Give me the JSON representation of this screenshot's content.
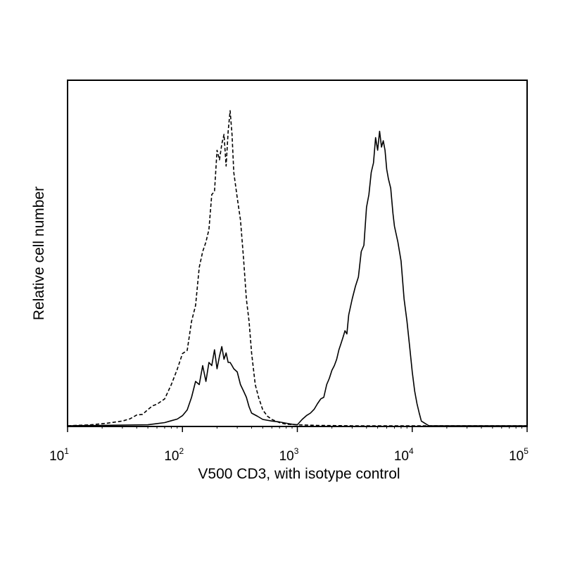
{
  "chart_data": {
    "type": "line",
    "title": "",
    "xlabel": "V500 CD3, with isotype control",
    "ylabel": "Relative cell number",
    "x_scale": "log",
    "xlim": [
      10,
      100000
    ],
    "ylim": [
      0,
      100
    ],
    "grid": false,
    "legend": "none",
    "x_ticks": [
      {
        "base": "10",
        "exp": "1",
        "value": 10
      },
      {
        "base": "10",
        "exp": "2",
        "value": 100
      },
      {
        "base": "10",
        "exp": "3",
        "value": 1000
      },
      {
        "base": "10",
        "exp": "4",
        "value": 10000
      },
      {
        "base": "10",
        "exp": "5",
        "value": 100000
      }
    ],
    "series": [
      {
        "style": "dashed",
        "color": "#000000",
        "x": [
          10,
          16,
          22,
          30,
          35,
          40,
          45,
          50,
          55,
          60,
          70,
          80,
          90,
          100,
          110,
          120,
          130,
          140,
          150,
          160,
          170,
          180,
          190,
          200,
          210,
          220,
          230,
          240,
          250,
          260,
          270,
          280,
          300,
          320,
          340,
          360,
          380,
          400,
          430,
          460,
          500,
          550,
          600,
          700,
          800,
          1000,
          1500,
          3000,
          10000,
          100000
        ],
        "y": [
          0,
          0.3,
          0.8,
          1.5,
          2.2,
          3.4,
          3.6,
          5.1,
          6.3,
          6.8,
          8.5,
          13,
          17.8,
          22.8,
          23.8,
          33,
          38,
          50,
          55,
          58,
          62,
          73,
          74,
          87,
          84,
          89,
          92,
          82,
          93,
          99.5,
          92,
          80,
          72,
          65,
          53,
          40,
          33,
          23,
          13,
          9,
          5,
          3,
          2,
          1,
          0.5,
          0.3,
          0.1,
          0,
          0,
          0
        ]
      },
      {
        "style": "solid",
        "color": "#000000",
        "x": [
          10,
          50,
          60,
          70,
          80,
          90,
          100,
          110,
          120,
          130,
          140,
          150,
          160,
          170,
          180,
          190,
          200,
          210,
          220,
          230,
          240,
          250,
          260,
          270,
          280,
          300,
          320,
          340,
          360,
          380,
          400,
          450,
          500,
          600,
          700,
          800,
          900,
          1000,
          1100,
          1200,
          1300,
          1400,
          1500,
          1600,
          1700,
          1800,
          1900,
          2000,
          2100,
          2200,
          2300,
          2400,
          2500,
          2600,
          2700,
          2800,
          3000,
          3200,
          3400,
          3600,
          3800,
          4000,
          4200,
          4400,
          4600,
          4800,
          5000,
          5200,
          5400,
          5600,
          5800,
          6000,
          6200,
          6500,
          6800,
          7000,
          7500,
          8000,
          8500,
          9000,
          9500,
          10000,
          10500,
          11000,
          11500,
          12000,
          13000,
          14000,
          20000,
          100000
        ],
        "y": [
          0,
          0.3,
          0.7,
          1,
          1.6,
          2.1,
          3.2,
          5,
          9,
          14,
          13,
          19,
          14,
          20,
          19,
          24,
          18,
          22,
          25,
          21,
          23,
          20,
          20,
          19,
          18,
          17,
          13,
          11,
          9,
          6,
          4,
          3,
          2,
          1.5,
          1.2,
          0.8,
          0.5,
          0.3,
          2,
          3.2,
          4,
          5.2,
          7,
          8.5,
          9,
          13,
          15,
          17.5,
          19,
          21,
          24,
          26,
          28,
          30,
          29,
          35,
          40,
          44,
          47,
          55,
          57,
          69,
          73,
          80,
          83,
          91,
          87,
          93,
          88,
          90,
          87,
          81,
          78,
          75,
          67,
          63,
          58,
          52,
          40,
          33,
          25,
          17,
          11,
          7,
          4,
          1.5,
          0.7,
          0,
          0,
          0
        ]
      }
    ]
  }
}
